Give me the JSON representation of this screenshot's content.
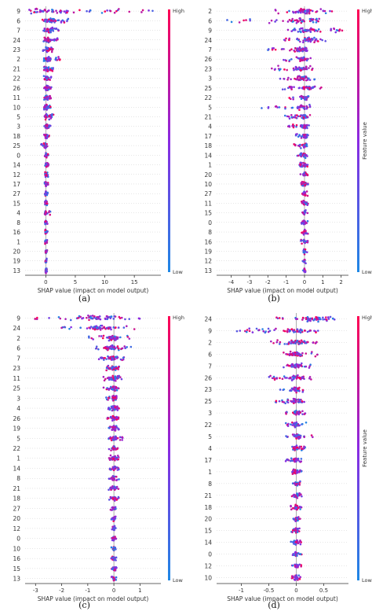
{
  "colors": {
    "low": "#1E88E5",
    "high": "#FF0052",
    "zero_line": "#999999",
    "row_line": "#cccccc"
  },
  "colorbar": {
    "high_label": "High",
    "low_label": "Low",
    "title": "Feature value"
  },
  "chart_data": [
    {
      "type": "scatter",
      "panel": "(a)",
      "xlabel": "SHAP value (impact on model output)",
      "ylabel": "",
      "xticks": [
        0,
        5,
        10,
        15
      ],
      "xlim": [
        -3.5,
        19.5
      ],
      "features": [
        "9",
        "6",
        "7",
        "24",
        "23",
        "2",
        "21",
        "22",
        "26",
        "11",
        "10",
        "5",
        "3",
        "18",
        "25",
        "0",
        "14",
        "12",
        "17",
        "27",
        "15",
        "4",
        "8",
        "16",
        "1",
        "20",
        "19",
        "13"
      ],
      "spread": [
        {
          "min": -3.2,
          "max": 18.5,
          "center": 0.2
        },
        {
          "min": -0.6,
          "max": 3.8,
          "center": 0.8
        },
        {
          "min": -0.4,
          "max": 2.3,
          "center": 0.6
        },
        {
          "min": -0.4,
          "max": 2.1,
          "center": 0.4
        },
        {
          "min": -0.5,
          "max": 1.3,
          "center": 0.3
        },
        {
          "min": -0.4,
          "max": 2.4,
          "center": 0.3
        },
        {
          "min": -0.3,
          "max": 1.3,
          "center": 0.2
        },
        {
          "min": -0.4,
          "max": 1.0,
          "center": 0.2
        },
        {
          "min": -0.4,
          "max": 1.1,
          "center": 0.2
        },
        {
          "min": -0.3,
          "max": 0.9,
          "center": 0.1
        },
        {
          "min": -0.3,
          "max": 0.9,
          "center": 0.1
        },
        {
          "min": -0.3,
          "max": 1.3,
          "center": 0.1
        },
        {
          "min": -0.3,
          "max": 0.8,
          "center": 0.1
        },
        {
          "min": -0.3,
          "max": 0.6,
          "center": 0.1
        },
        {
          "min": -0.8,
          "max": 0.3,
          "center": 0.0
        },
        {
          "min": -0.2,
          "max": 0.5,
          "center": 0.1
        },
        {
          "min": -0.2,
          "max": 0.5,
          "center": 0.1
        },
        {
          "min": -0.2,
          "max": 0.4,
          "center": 0.0
        },
        {
          "min": -0.2,
          "max": 0.4,
          "center": 0.0
        },
        {
          "min": -0.2,
          "max": 0.4,
          "center": 0.0
        },
        {
          "min": -0.2,
          "max": 0.4,
          "center": 0.0
        },
        {
          "min": -0.2,
          "max": 0.8,
          "center": 0.0
        },
        {
          "min": -0.2,
          "max": 0.3,
          "center": 0.0
        },
        {
          "min": -0.2,
          "max": 0.3,
          "center": 0.0
        },
        {
          "min": -0.2,
          "max": 0.3,
          "center": 0.0
        },
        {
          "min": -0.1,
          "max": 0.3,
          "center": 0.0
        },
        {
          "min": -0.1,
          "max": 0.2,
          "center": 0.0
        },
        {
          "min": -0.1,
          "max": 0.2,
          "center": 0.0
        }
      ]
    },
    {
      "type": "scatter",
      "panel": "(b)",
      "xlabel": "SHAP value (impact on model output)",
      "ylabel": "Feature value",
      "xticks": [
        -4,
        -3,
        -2,
        -1,
        0,
        1,
        2
      ],
      "xlim": [
        -4.8,
        2.4
      ],
      "features": [
        "2",
        "6",
        "9",
        "24",
        "7",
        "26",
        "23",
        "3",
        "25",
        "22",
        "5",
        "21",
        "4",
        "17",
        "18",
        "14",
        "1",
        "20",
        "10",
        "27",
        "11",
        "15",
        "0",
        "8",
        "16",
        "19",
        "12",
        "13"
      ],
      "spread": [
        {
          "min": -1.6,
          "max": 1.6,
          "center": 0.0
        },
        {
          "min": -4.3,
          "max": 0.8,
          "center": -0.1
        },
        {
          "min": -1.3,
          "max": 2.1,
          "center": 0.1
        },
        {
          "min": -1.3,
          "max": 1.2,
          "center": 0.2
        },
        {
          "min": -2.0,
          "max": 0.2,
          "center": -0.2
        },
        {
          "min": -1.2,
          "max": 0.4,
          "center": -0.1
        },
        {
          "min": -1.9,
          "max": 0.6,
          "center": -0.2
        },
        {
          "min": -1.4,
          "max": 0.6,
          "center": -0.1
        },
        {
          "min": -1.2,
          "max": 1.0,
          "center": 0.1
        },
        {
          "min": -1.0,
          "max": 0.3,
          "center": 0.0
        },
        {
          "min": -2.4,
          "max": 0.3,
          "center": -0.1
        },
        {
          "min": -1.1,
          "max": 0.3,
          "center": 0.0
        },
        {
          "min": -0.9,
          "max": 0.3,
          "center": 0.0
        },
        {
          "min": -0.5,
          "max": 0.2,
          "center": 0.0
        },
        {
          "min": -0.6,
          "max": 0.2,
          "center": 0.0
        },
        {
          "min": -0.4,
          "max": 0.2,
          "center": 0.0
        },
        {
          "min": -0.3,
          "max": 0.2,
          "center": 0.0
        },
        {
          "min": -0.3,
          "max": 0.2,
          "center": 0.0
        },
        {
          "min": -0.2,
          "max": 0.2,
          "center": 0.0
        },
        {
          "min": -0.2,
          "max": 0.2,
          "center": 0.0
        },
        {
          "min": -0.2,
          "max": 0.2,
          "center": 0.0
        },
        {
          "min": -0.2,
          "max": 0.2,
          "center": 0.0
        },
        {
          "min": -0.2,
          "max": 0.2,
          "center": 0.0
        },
        {
          "min": -0.2,
          "max": 0.2,
          "center": 0.0
        },
        {
          "min": -0.2,
          "max": 0.2,
          "center": 0.0
        },
        {
          "min": -0.2,
          "max": 0.2,
          "center": 0.0
        },
        {
          "min": -0.1,
          "max": 0.1,
          "center": 0.0
        },
        {
          "min": -0.1,
          "max": 0.1,
          "center": 0.0
        }
      ]
    },
    {
      "type": "scatter",
      "panel": "(c)",
      "xlabel": "SHAP value (impact on model output)",
      "ylabel": "",
      "xticks": [
        -3,
        -2,
        -1,
        0,
        1
      ],
      "xlim": [
        -3.4,
        1.8
      ],
      "features": [
        "9",
        "24",
        "2",
        "6",
        "7",
        "23",
        "11",
        "25",
        "3",
        "4",
        "26",
        "19",
        "5",
        "22",
        "1",
        "14",
        "8",
        "21",
        "18",
        "27",
        "20",
        "12",
        "0",
        "10",
        "16",
        "15",
        "13"
      ],
      "spread": [
        {
          "min": -3.2,
          "max": 1.4,
          "center": -0.6
        },
        {
          "min": -2.1,
          "max": 1.2,
          "center": -0.5
        },
        {
          "min": -1.0,
          "max": 0.6,
          "center": -0.1
        },
        {
          "min": -0.8,
          "max": 0.7,
          "center": -0.1
        },
        {
          "min": -0.6,
          "max": 0.4,
          "center": 0.0
        },
        {
          "min": -0.4,
          "max": 0.3,
          "center": 0.0
        },
        {
          "min": -0.4,
          "max": 0.3,
          "center": 0.0
        },
        {
          "min": -0.4,
          "max": 0.2,
          "center": 0.0
        },
        {
          "min": -0.3,
          "max": 0.2,
          "center": 0.0
        },
        {
          "min": -0.3,
          "max": 0.2,
          "center": 0.0
        },
        {
          "min": -0.3,
          "max": 0.2,
          "center": 0.0
        },
        {
          "min": -0.2,
          "max": 0.2,
          "center": 0.0
        },
        {
          "min": -0.2,
          "max": 0.4,
          "center": 0.0
        },
        {
          "min": -0.2,
          "max": 0.2,
          "center": 0.0
        },
        {
          "min": -0.2,
          "max": 0.2,
          "center": 0.0
        },
        {
          "min": -0.2,
          "max": 0.2,
          "center": 0.0
        },
        {
          "min": -0.2,
          "max": 0.2,
          "center": 0.0
        },
        {
          "min": -0.2,
          "max": 0.2,
          "center": 0.0
        },
        {
          "min": -0.2,
          "max": 0.2,
          "center": 0.0
        },
        {
          "min": -0.2,
          "max": 0.2,
          "center": 0.0
        },
        {
          "min": -0.1,
          "max": 0.1,
          "center": 0.0
        },
        {
          "min": -0.1,
          "max": 0.1,
          "center": 0.0
        },
        {
          "min": -0.1,
          "max": 0.1,
          "center": 0.0
        },
        {
          "min": -0.1,
          "max": 0.1,
          "center": 0.0
        },
        {
          "min": -0.1,
          "max": 0.1,
          "center": 0.0
        },
        {
          "min": -0.1,
          "max": 0.1,
          "center": 0.0
        },
        {
          "min": -0.1,
          "max": 0.1,
          "center": 0.0
        }
      ]
    },
    {
      "type": "scatter",
      "panel": "(d)",
      "xlabel": "SHAP value (impact on model output)",
      "ylabel": "Feature value",
      "xticks": [
        -1.0,
        -0.5,
        0.0,
        0.5
      ],
      "xlim": [
        -1.45,
        0.95
      ],
      "features": [
        "24",
        "9",
        "2",
        "6",
        "7",
        "26",
        "23",
        "25",
        "3",
        "22",
        "5",
        "4",
        "17",
        "1",
        "8",
        "21",
        "18",
        "20",
        "15",
        "14",
        "0",
        "12",
        "10"
      ],
      "spread": [
        {
          "min": -0.4,
          "max": 0.8,
          "center": 0.3
        },
        {
          "min": -1.1,
          "max": 0.5,
          "center": 0.0
        },
        {
          "min": -0.5,
          "max": 0.4,
          "center": 0.0
        },
        {
          "min": -0.3,
          "max": 0.4,
          "center": 0.0
        },
        {
          "min": -0.3,
          "max": 0.3,
          "center": 0.0
        },
        {
          "min": -0.5,
          "max": 0.3,
          "center": 0.0
        },
        {
          "min": -0.3,
          "max": 0.2,
          "center": 0.0
        },
        {
          "min": -0.4,
          "max": 0.2,
          "center": 0.0
        },
        {
          "min": -0.2,
          "max": 0.2,
          "center": 0.0
        },
        {
          "min": -0.2,
          "max": 0.2,
          "center": 0.0
        },
        {
          "min": -0.2,
          "max": 0.3,
          "center": 0.0
        },
        {
          "min": -0.1,
          "max": 0.2,
          "center": 0.0
        },
        {
          "min": -0.2,
          "max": 0.1,
          "center": 0.0
        },
        {
          "min": -0.1,
          "max": 0.1,
          "center": 0.0
        },
        {
          "min": -0.1,
          "max": 0.1,
          "center": 0.0
        },
        {
          "min": -0.1,
          "max": 0.1,
          "center": 0.0
        },
        {
          "min": -0.1,
          "max": 0.1,
          "center": 0.0
        },
        {
          "min": -0.1,
          "max": 0.1,
          "center": 0.0
        },
        {
          "min": -0.1,
          "max": 0.1,
          "center": 0.0
        },
        {
          "min": -0.1,
          "max": 0.1,
          "center": 0.0
        },
        {
          "min": -0.1,
          "max": 0.1,
          "center": 0.0
        },
        {
          "min": -0.1,
          "max": 0.1,
          "center": 0.0
        },
        {
          "min": -0.1,
          "max": 0.1,
          "center": 0.0
        }
      ]
    }
  ]
}
